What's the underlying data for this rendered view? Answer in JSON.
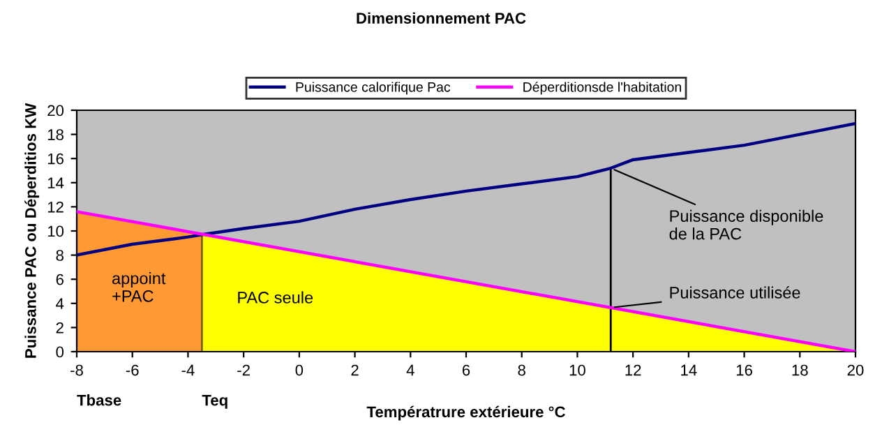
{
  "chart_data": {
    "type": "line",
    "title": "Dimensionnement PAC",
    "xlabel": "Températrure extérieure °C",
    "ylabel": "Puissance PAC ou Déperditios KW",
    "series": [
      {
        "type": "area",
        "color": "#ff9933",
        "x": [
          -8,
          -3.5
        ],
        "values": [
          11.6,
          9.7
        ]
      },
      {
        "type": "area",
        "color": "#ffff00",
        "x": [
          -3.5,
          20
        ],
        "values": [
          9.7,
          0
        ]
      },
      {
        "name": "Puissance calorifique Pac",
        "color": "#000080",
        "x": [
          -8,
          -6,
          -4,
          -3.5,
          -2,
          0,
          2,
          4,
          6,
          8,
          10,
          11.2,
          12,
          14,
          16,
          18,
          20
        ],
        "values": [
          8.0,
          8.9,
          9.5,
          9.7,
          10.2,
          10.8,
          11.8,
          12.6,
          13.3,
          13.9,
          14.5,
          15.2,
          15.9,
          16.5,
          17.1,
          18.0,
          18.9
        ]
      },
      {
        "name": "Déperditionsde l'habitation",
        "color": "#ff00ff",
        "x": [
          -8,
          20
        ],
        "values": [
          11.6,
          0
        ]
      }
    ],
    "ref_lines": [
      {
        "axis": "x",
        "value": -3.5,
        "color": "#7f6000"
      },
      {
        "axis": "x",
        "value": 11.2,
        "color": "#000000"
      }
    ],
    "annotations": [
      "appoint\n+PAC",
      "PAC seule",
      {
        "text": "Tbase",
        "x": -8,
        "y": 0
      },
      {
        "text": "Teq",
        "x": -3.5,
        "y": 0
      },
      {
        "text": "Puissance disponible\nde la PAC",
        "x": 11.2,
        "y": 15.2
      },
      {
        "text": "Puissance utilisée",
        "x": 11.2,
        "y": 3.65
      }
    ],
    "xlim": [
      -8,
      20
    ],
    "xticks": [
      -8,
      -6,
      -4,
      -2,
      0,
      2,
      4,
      6,
      8,
      10,
      12,
      14,
      16,
      18,
      20
    ],
    "ylim": [
      0,
      20
    ],
    "yticks": [
      0,
      2,
      4,
      6,
      8,
      10,
      12,
      14,
      16,
      18,
      20
    ],
    "grid": false,
    "legend": "top",
    "marker": "none",
    "line_style": "solid"
  }
}
